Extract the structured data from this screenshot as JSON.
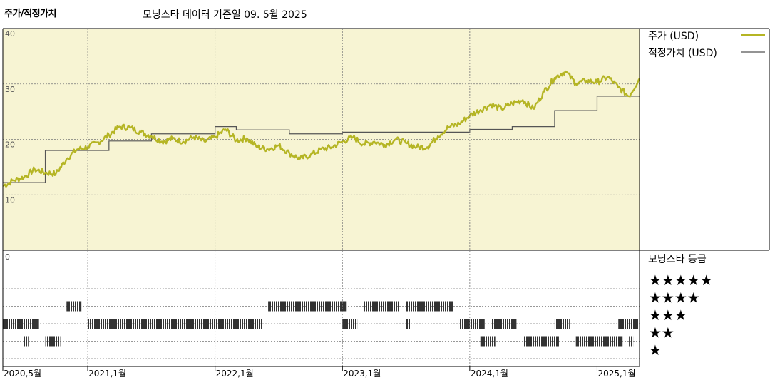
{
  "header": {
    "left_title": "주가/적정가치",
    "main_title": "모닝스타 데이터 기준일 09. 5월 2025"
  },
  "colors": {
    "price_line": "#b5b524",
    "fair_value_line": "#555555",
    "upper_bg": "#f7f4d3",
    "rating_bar": "#333333"
  },
  "chart_data": {
    "type": "line",
    "title": "",
    "ylabel": "",
    "xlabel": "",
    "ylim": [
      0,
      40
    ],
    "y_ticks": [
      10,
      20,
      30,
      40
    ],
    "x_tick_labels": [
      "2020,5월",
      "2021,1월",
      "2022,1월",
      "2023,1월",
      "2024,1월",
      "2025,1월"
    ],
    "x_tick_dates": [
      "2020-05",
      "2021-01",
      "2022-01",
      "2023-01",
      "2024-01",
      "2025-01"
    ],
    "x_range": [
      "2020-05",
      "2025-05"
    ],
    "grid": true,
    "legend_position": "right",
    "series": [
      {
        "name": "주가 (USD)",
        "style": "price",
        "points": [
          [
            "2020-05",
            11.6
          ],
          [
            "2020-06",
            12.6
          ],
          [
            "2020-07",
            13.2
          ],
          [
            "2020-08",
            14.6
          ],
          [
            "2020-09",
            14.0
          ],
          [
            "2020-10",
            13.8
          ],
          [
            "2020-11",
            16.5
          ],
          [
            "2020-12",
            18.2
          ],
          [
            "2021-01",
            18.6
          ],
          [
            "2021-02",
            19.5
          ],
          [
            "2021-03",
            20.8
          ],
          [
            "2021-04",
            22.3
          ],
          [
            "2021-05",
            22.1
          ],
          [
            "2021-06",
            21.3
          ],
          [
            "2021-07",
            20.6
          ],
          [
            "2021-08",
            19.6
          ],
          [
            "2021-09",
            20.1
          ],
          [
            "2021-10",
            19.6
          ],
          [
            "2021-11",
            20.4
          ],
          [
            "2021-12",
            19.6
          ],
          [
            "2022-01",
            20.4
          ],
          [
            "2022-02",
            21.8
          ],
          [
            "2022-03",
            19.8
          ],
          [
            "2022-04",
            20.2
          ],
          [
            "2022-05",
            18.6
          ],
          [
            "2022-06",
            18.2
          ],
          [
            "2022-07",
            18.9
          ],
          [
            "2022-08",
            17.5
          ],
          [
            "2022-09",
            16.5
          ],
          [
            "2022-10",
            17.2
          ],
          [
            "2022-11",
            18.2
          ],
          [
            "2022-12",
            18.6
          ],
          [
            "2023-01",
            19.6
          ],
          [
            "2023-02",
            20.4
          ],
          [
            "2023-03",
            19.1
          ],
          [
            "2023-04",
            19.6
          ],
          [
            "2023-05",
            19.0
          ],
          [
            "2023-06",
            20.0
          ],
          [
            "2023-07",
            19.3
          ],
          [
            "2023-08",
            18.6
          ],
          [
            "2023-09",
            18.6
          ],
          [
            "2023-10",
            20.6
          ],
          [
            "2023-11",
            22.2
          ],
          [
            "2023-12",
            22.8
          ],
          [
            "2024-01",
            24.3
          ],
          [
            "2024-02",
            25.3
          ],
          [
            "2024-03",
            26.3
          ],
          [
            "2024-04",
            25.5
          ],
          [
            "2024-05",
            26.5
          ],
          [
            "2024-06",
            27.1
          ],
          [
            "2024-07",
            25.5
          ],
          [
            "2024-08",
            28.6
          ],
          [
            "2024-09",
            31.1
          ],
          [
            "2024-10",
            32.3
          ],
          [
            "2024-11",
            30.1
          ],
          [
            "2024-12",
            30.6
          ],
          [
            "2025-01",
            30.3
          ],
          [
            "2025-02",
            31.3
          ],
          [
            "2025-03",
            29.4
          ],
          [
            "2025-04",
            27.8
          ],
          [
            "2025-05",
            31.0
          ]
        ]
      },
      {
        "name": "적정가치 (USD)",
        "style": "fairvalue",
        "steps": [
          [
            "2020-05",
            12.2
          ],
          [
            "2020-09",
            18.0
          ],
          [
            "2021-03",
            19.7
          ],
          [
            "2021-07",
            21.0
          ],
          [
            "2022-01",
            22.3
          ],
          [
            "2022-03",
            21.7
          ],
          [
            "2022-08",
            21.0
          ],
          [
            "2023-01",
            21.3
          ],
          [
            "2024-01",
            21.8
          ],
          [
            "2024-05",
            22.3
          ],
          [
            "2024-09",
            25.2
          ],
          [
            "2025-01",
            27.8
          ],
          [
            "2025-05",
            27.8
          ]
        ]
      }
    ],
    "rating_panel": {
      "title": "모닝스타 등급",
      "levels": [
        "★★★★★",
        "★★★★",
        "★★★",
        "★★",
        "★"
      ],
      "periods": [
        {
          "stars": 3,
          "from": "2020-05",
          "to": "2020-08"
        },
        {
          "stars": 2,
          "from": "2020-07",
          "to": "2020-07"
        },
        {
          "stars": 2,
          "from": "2020-09",
          "to": "2020-10"
        },
        {
          "stars": 4,
          "from": "2020-11",
          "to": "2020-12"
        },
        {
          "stars": 3,
          "from": "2021-01",
          "to": "2022-05"
        },
        {
          "stars": 4,
          "from": "2022-06",
          "to": "2023-01"
        },
        {
          "stars": 3,
          "from": "2023-01",
          "to": "2023-02"
        },
        {
          "stars": 4,
          "from": "2023-03",
          "to": "2023-06"
        },
        {
          "stars": 3,
          "from": "2023-07",
          "to": "2023-07"
        },
        {
          "stars": 4,
          "from": "2023-07",
          "to": "2023-11"
        },
        {
          "stars": 3,
          "from": "2023-12",
          "to": "2024-02"
        },
        {
          "stars": 2,
          "from": "2024-02",
          "to": "2024-03"
        },
        {
          "stars": 3,
          "from": "2024-03",
          "to": "2024-05"
        },
        {
          "stars": 2,
          "from": "2024-06",
          "to": "2024-09"
        },
        {
          "stars": 3,
          "from": "2024-09",
          "to": "2024-10"
        },
        {
          "stars": 2,
          "from": "2024-11",
          "to": "2025-03"
        },
        {
          "stars": 3,
          "from": "2025-03",
          "to": "2025-04"
        },
        {
          "stars": 2,
          "from": "2025-04",
          "to": "2025-04"
        },
        {
          "stars": 3,
          "from": "2025-04",
          "to": "2025-05"
        },
        {
          "stars": 2,
          "from": "2025-05",
          "to": "2025-05"
        }
      ]
    }
  }
}
